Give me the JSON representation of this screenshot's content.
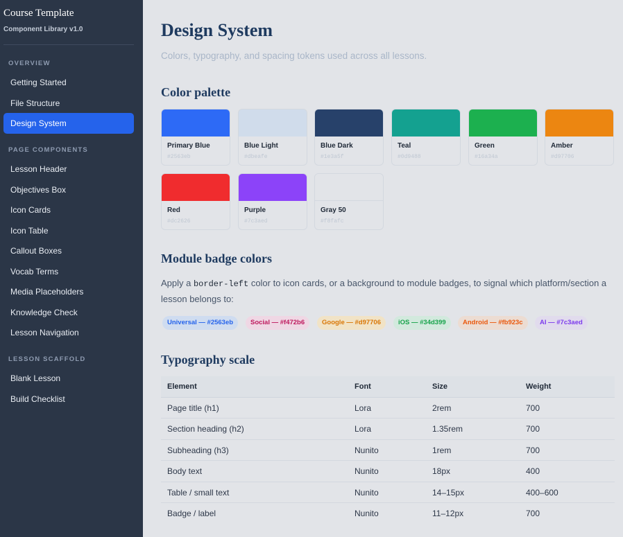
{
  "sidebar": {
    "brand_title": "Course Template",
    "brand_subtitle": "Component Library v1.0",
    "sections": [
      "OVERVIEW",
      "PAGE COMPONENTS",
      "LESSON SCAFFOLD"
    ],
    "overview_items": [
      "Getting Started",
      "File Structure",
      "Design System"
    ],
    "component_items": [
      "Lesson Header",
      "Objectives Box",
      "Icon Cards",
      "Icon Table",
      "Callout Boxes",
      "Vocab Terms",
      "Media Placeholders",
      "Knowledge Check",
      "Lesson Navigation"
    ],
    "scaffold_items": [
      "Blank Lesson",
      "Build Checklist"
    ],
    "active_item": "Design System",
    "active_color": "#2563eb"
  },
  "main": {
    "title": "Design System",
    "subtitle": "Colors, typography, and spacing tokens used across all lessons.",
    "palette_heading": "Color palette",
    "palette": [
      {
        "name": "Primary Blue",
        "hex": "#2563eb",
        "display": "#2D6AF6"
      },
      {
        "name": "Blue Light",
        "hex": "#dbeafe",
        "display": "#D0DCEB"
      },
      {
        "name": "Blue Dark",
        "hex": "#1e3a5f",
        "display": "#27416A"
      },
      {
        "name": "Teal",
        "hex": "#0d9488",
        "display": "#14A190"
      },
      {
        "name": "Green",
        "hex": "#16a34a",
        "display": "#1CB04F"
      },
      {
        "name": "Amber",
        "hex": "#d97706",
        "display": "#EC8611"
      },
      {
        "name": "Red",
        "hex": "#dc2626",
        "display": "#F02C2E"
      },
      {
        "name": "Purple",
        "hex": "#7c3aed",
        "display": "#8C43F9"
      },
      {
        "name": "Gray 50",
        "hex": "#f8fafc",
        "display": "#E2E4E8"
      }
    ],
    "badge_heading": "Module badge colors",
    "badge_para_before": "Apply a ",
    "badge_para_code": "border-left",
    "badge_para_after": " color to icon cards, or a background to module badges, to signal which platform/section a lesson belongs to:",
    "badges": [
      {
        "label": "Universal — #2563eb",
        "fg": "#2563eb",
        "bg": "#cfdcf0"
      },
      {
        "label": "Social — #f472b6",
        "fg": "#be185d",
        "bg": "#efd7e4"
      },
      {
        "label": "Google — #d97706",
        "fg": "#d97706",
        "bg": "#f1e3c6"
      },
      {
        "label": "iOS — #34d399",
        "fg": "#16a34a",
        "bg": "#d2e9dd"
      },
      {
        "label": "Android — #fb923c",
        "fg": "#ea580c",
        "bg": "#ecdcd2"
      },
      {
        "label": "AI — #7c3aed",
        "fg": "#7c3aed",
        "bg": "#e1dbed"
      }
    ],
    "typo_heading": "Typography scale",
    "typo_table": {
      "headers": [
        "Element",
        "Font",
        "Size",
        "Weight"
      ],
      "rows": [
        [
          "Page title (h1)",
          "Lora",
          "2rem",
          "700"
        ],
        [
          "Section heading (h2)",
          "Lora",
          "1.35rem",
          "700"
        ],
        [
          "Subheading (h3)",
          "Nunito",
          "1rem",
          "700"
        ],
        [
          "Body text",
          "Nunito",
          "18px",
          "400"
        ],
        [
          "Table / small text",
          "Nunito",
          "14–15px",
          "400–600"
        ],
        [
          "Badge / label",
          "Nunito",
          "11–12px",
          "700"
        ]
      ]
    }
  }
}
